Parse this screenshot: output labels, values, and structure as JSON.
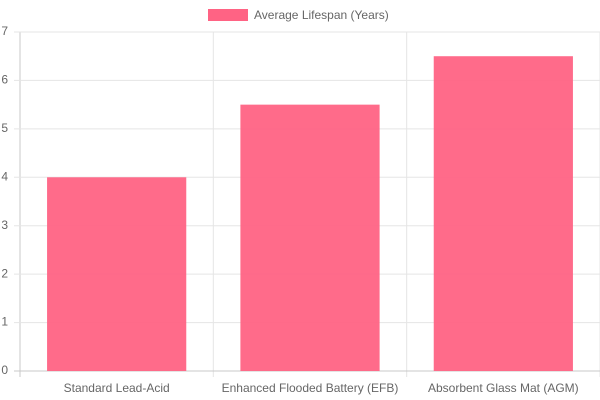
{
  "chart_data": {
    "type": "bar",
    "categories": [
      "Standard Lead-Acid",
      "Enhanced Flooded Battery (EFB)",
      "Absorbent Glass Mat (AGM)"
    ],
    "series": [
      {
        "name": "Average Lifespan (Years)",
        "color": "#ff6384",
        "values": [
          4,
          5.5,
          6.5
        ]
      }
    ],
    "ylim": [
      0,
      7
    ],
    "yticks": [
      0,
      1,
      2,
      3,
      4,
      5,
      6,
      7
    ],
    "grid": true,
    "legend": "top"
  }
}
